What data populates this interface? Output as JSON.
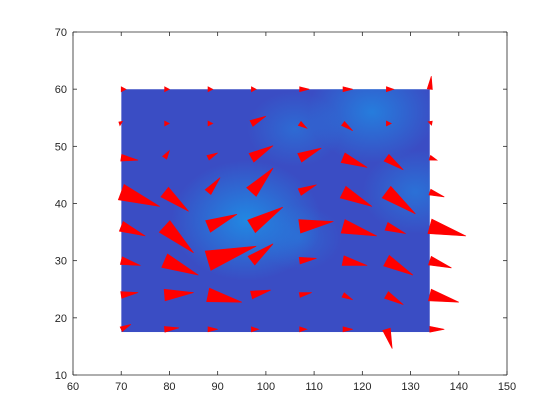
{
  "chart_data": {
    "type": "quiver",
    "xlim": [
      60,
      150
    ],
    "ylim": [
      10,
      70
    ],
    "xticks": [
      60,
      70,
      80,
      90,
      100,
      110,
      120,
      130,
      140,
      150
    ],
    "yticks": [
      10,
      20,
      30,
      40,
      50,
      60,
      70
    ],
    "x_tick_labels": [
      "60",
      "70",
      "80",
      "90",
      "100",
      "110",
      "120",
      "130",
      "140",
      "150"
    ],
    "y_tick_labels": [
      "10",
      "20",
      "30",
      "40",
      "50",
      "60",
      "70"
    ],
    "grid": false,
    "colors": {
      "arrow": "#ff0000",
      "field_base": "#3a4dc4",
      "field_highlight": "#1e8fe6",
      "axis": "#262626"
    },
    "field_extent": {
      "x": [
        70,
        134
      ],
      "y": [
        17.5,
        60
      ]
    },
    "field_highlights": [
      {
        "x": 96,
        "y": 37,
        "strength": 1.0
      },
      {
        "x": 122,
        "y": 56,
        "strength": 0.8
      },
      {
        "x": 131,
        "y": 42,
        "strength": 0.6
      },
      {
        "x": 106,
        "y": 53,
        "strength": 0.5
      },
      {
        "x": 107,
        "y": 34,
        "strength": 0.4
      }
    ],
    "vectors": [
      {
        "x": 70,
        "y": 60,
        "u": 1,
        "v": 0.0
      },
      {
        "x": 79,
        "y": 60,
        "u": 1,
        "v": 0.0
      },
      {
        "x": 88,
        "y": 60,
        "u": 1,
        "v": 0.0
      },
      {
        "x": 97,
        "y": 60,
        "u": 1,
        "v": 0.0
      },
      {
        "x": 107,
        "y": 60,
        "u": 2,
        "v": 0.0
      },
      {
        "x": 116,
        "y": 60,
        "u": 2,
        "v": 0.0
      },
      {
        "x": 125,
        "y": 60,
        "u": 1.5,
        "v": 0.0
      },
      {
        "x": 134,
        "y": 60,
        "u": 0.3,
        "v": 2.7
      },
      {
        "x": 70,
        "y": 54,
        "u": -0.5,
        "v": 0.3
      },
      {
        "x": 79,
        "y": 54,
        "u": 1,
        "v": 0.0
      },
      {
        "x": 88,
        "y": 54,
        "u": 1,
        "v": 0.0
      },
      {
        "x": 97,
        "y": 54,
        "u": 3,
        "v": 1.5
      },
      {
        "x": 107,
        "y": 54,
        "u": 1.5,
        "v": -1.0
      },
      {
        "x": 116,
        "y": 54,
        "u": 2,
        "v": -1.5
      },
      {
        "x": 125,
        "y": 54,
        "u": 1,
        "v": 0.0
      },
      {
        "x": 134,
        "y": 54,
        "u": 0.5,
        "v": 0.5
      },
      {
        "x": 70,
        "y": 48,
        "u": 3.5,
        "v": -0.5
      },
      {
        "x": 79,
        "y": 48,
        "u": 1,
        "v": 1.5
      },
      {
        "x": 88,
        "y": 48,
        "u": 2,
        "v": 1.0
      },
      {
        "x": 97,
        "y": 48,
        "u": 4.5,
        "v": 2.5
      },
      {
        "x": 107,
        "y": 48,
        "u": 4.5,
        "v": 2.0
      },
      {
        "x": 116,
        "y": 48,
        "u": 5,
        "v": -2.0
      },
      {
        "x": 125,
        "y": 48,
        "u": 3.5,
        "v": -2.5
      },
      {
        "x": 134,
        "y": 48,
        "u": 1.5,
        "v": -0.5
      },
      {
        "x": 70,
        "y": 42,
        "u": 8,
        "v": -3.0
      },
      {
        "x": 79,
        "y": 42,
        "u": 5,
        "v": -4.0
      },
      {
        "x": 88,
        "y": 42,
        "u": 2.5,
        "v": 3.0
      },
      {
        "x": 97,
        "y": 42,
        "u": 4.5,
        "v": 5.0
      },
      {
        "x": 107,
        "y": 42,
        "u": 3.5,
        "v": 1.5
      },
      {
        "x": 116,
        "y": 42,
        "u": 6,
        "v": -3.0
      },
      {
        "x": 125,
        "y": 42,
        "u": 6,
        "v": -4.5
      },
      {
        "x": 134,
        "y": 42,
        "u": 3,
        "v": -1.0
      },
      {
        "x": 70,
        "y": 36,
        "u": 5,
        "v": -2.0
      },
      {
        "x": 79,
        "y": 36,
        "u": 6,
        "v": -5.5
      },
      {
        "x": 88,
        "y": 36,
        "u": 6,
        "v": 2.5
      },
      {
        "x": 97,
        "y": 36,
        "u": 6.5,
        "v": 4.0
      },
      {
        "x": 107,
        "y": 36,
        "u": 7,
        "v": 1.0
      },
      {
        "x": 116,
        "y": 36,
        "u": 7,
        "v": -2.0
      },
      {
        "x": 125,
        "y": 36,
        "u": 4,
        "v": -1.5
      },
      {
        "x": 134,
        "y": 36,
        "u": 7.5,
        "v": -2.0
      },
      {
        "x": 70,
        "y": 30,
        "u": 4,
        "v": -1.0
      },
      {
        "x": 79,
        "y": 30,
        "u": 7,
        "v": -3.0
      },
      {
        "x": 88,
        "y": 30,
        "u": 10,
        "v": 3.0
      },
      {
        "x": 97,
        "y": 30,
        "u": 4.5,
        "v": 3.5
      },
      {
        "x": 107,
        "y": 30,
        "u": 3.5,
        "v": 0.5
      },
      {
        "x": 116,
        "y": 30,
        "u": 5,
        "v": -1.0
      },
      {
        "x": 125,
        "y": 30,
        "u": 5.5,
        "v": -3.0
      },
      {
        "x": 134,
        "y": 30,
        "u": 4.5,
        "v": -1.5
      },
      {
        "x": 70,
        "y": 24,
        "u": 3.5,
        "v": 0.5
      },
      {
        "x": 79,
        "y": 24,
        "u": 6,
        "v": 0.5
      },
      {
        "x": 88,
        "y": 24,
        "u": 7,
        "v": -1.5
      },
      {
        "x": 97,
        "y": 24,
        "u": 4,
        "v": 1.0
      },
      {
        "x": 107,
        "y": 24,
        "u": 2.5,
        "v": 0.5
      },
      {
        "x": 116,
        "y": 24,
        "u": 2,
        "v": -1.0
      },
      {
        "x": 125,
        "y": 24,
        "u": 3.5,
        "v": -2.0
      },
      {
        "x": 134,
        "y": 24,
        "u": 6,
        "v": -1.5
      },
      {
        "x": 70,
        "y": 18,
        "u": 2,
        "v": 1.0
      },
      {
        "x": 79,
        "y": 18,
        "u": 3,
        "v": 0.3
      },
      {
        "x": 88,
        "y": 18,
        "u": 2,
        "v": 0.0
      },
      {
        "x": 97,
        "y": 18,
        "u": 1.5,
        "v": 0.0
      },
      {
        "x": 107,
        "y": 18,
        "u": 1.5,
        "v": 0.0
      },
      {
        "x": 116,
        "y": 18,
        "u": 2,
        "v": 0.0
      },
      {
        "x": 125,
        "y": 18,
        "u": 1.2,
        "v": -4.0
      },
      {
        "x": 134,
        "y": 18,
        "u": 3,
        "v": 0.0
      }
    ]
  }
}
